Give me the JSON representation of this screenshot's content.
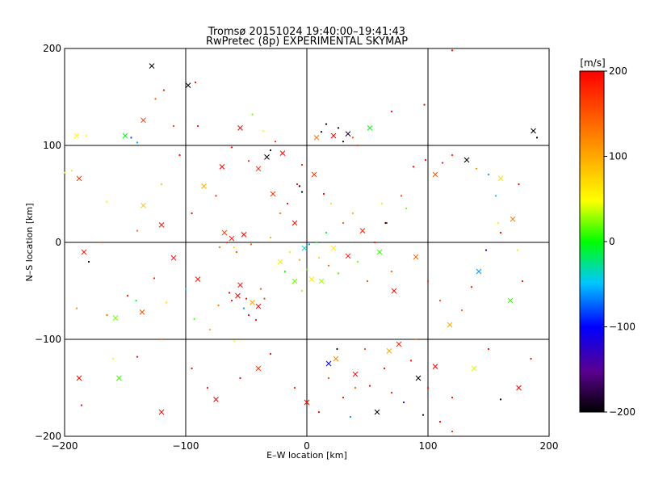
{
  "chart_data": {
    "type": "scatter",
    "title": "Tromsø 20151024 19:40:00–19:41:43",
    "subtitle": "RwPretec (8p) EXPERIMENTAL SKYMAP",
    "xlabel": "E–W location [km]",
    "ylabel": "N–S location [km]",
    "xlim": [
      -200,
      200
    ],
    "ylim": [
      -200,
      200
    ],
    "xticks": [
      -200,
      -100,
      0,
      100,
      200
    ],
    "yticks": [
      -200,
      -100,
      0,
      100,
      200
    ],
    "grid": true,
    "markers": {
      "dot": "small dot",
      "cross": "x"
    },
    "colorbar": {
      "label": "[m/s]",
      "min": -200,
      "max": 200,
      "ticks": [
        200,
        100,
        0,
        -100,
        -200
      ],
      "colormap": [
        "#000000",
        "#5a0090",
        "#0000ff",
        "#00c8ff",
        "#00ff00",
        "#ffff00",
        "#ff8000",
        "#ff0000"
      ],
      "placement": "right"
    },
    "series": [
      {
        "points": [
          [
            -150,
            110,
            0
          ],
          [
            -145,
            108,
            -80
          ],
          [
            -140,
            103,
            -60
          ],
          [
            -128,
            182,
            -200
          ],
          [
            -125,
            148,
            150
          ],
          [
            -118,
            157,
            190
          ],
          [
            -98,
            162,
            -200
          ],
          [
            -110,
            120,
            170
          ],
          [
            -165,
            42,
            60
          ],
          [
            -188,
            66,
            180
          ],
          [
            -190,
            -68,
            120
          ],
          [
            -165,
            -75,
            140
          ],
          [
            -158,
            -78,
            20
          ],
          [
            -148,
            -55,
            190
          ],
          [
            -141,
            -60,
            0
          ],
          [
            -136,
            -72,
            150
          ],
          [
            -126,
            -37,
            180
          ],
          [
            -116,
            -62,
            70
          ],
          [
            -110,
            -16,
            200
          ],
          [
            -100,
            -48,
            -50
          ],
          [
            -93,
            -79,
            10
          ],
          [
            -90,
            -38,
            190
          ],
          [
            -80,
            -90,
            100
          ],
          [
            -73,
            -65,
            130
          ],
          [
            -68,
            10,
            160
          ],
          [
            -64,
            -52,
            200
          ],
          [
            -60,
            -5,
            60
          ],
          [
            -57,
            -55,
            200
          ],
          [
            -52,
            -68,
            -60
          ],
          [
            -48,
            -75,
            200
          ],
          [
            -45,
            -62,
            100
          ],
          [
            -42,
            -80,
            190
          ],
          [
            -38,
            -48,
            150
          ],
          [
            -55,
            -44,
            200
          ],
          [
            -62,
            -60,
            200
          ],
          [
            -50,
            -58,
            200
          ],
          [
            -40,
            -66,
            200
          ],
          [
            -35,
            -58,
            170
          ],
          [
            -66,
            0,
            180
          ],
          [
            -62,
            4,
            190
          ],
          [
            -58,
            -10,
            160
          ],
          [
            -72,
            -5,
            130
          ],
          [
            -52,
            8,
            200
          ],
          [
            -46,
            -2,
            150
          ],
          [
            -30,
            5,
            100
          ],
          [
            -22,
            -20,
            60
          ],
          [
            -18,
            -30,
            0
          ],
          [
            -14,
            -10,
            40
          ],
          [
            -10,
            -40,
            20
          ],
          [
            -6,
            -18,
            100
          ],
          [
            -4,
            -50,
            30
          ],
          [
            -2,
            -6,
            -40
          ],
          [
            0,
            -28,
            10
          ],
          [
            2,
            -2,
            -60
          ],
          [
            4,
            -38,
            60
          ],
          [
            8,
            0,
            0
          ],
          [
            10,
            -16,
            80
          ],
          [
            12,
            -40,
            30
          ],
          [
            16,
            10,
            -10
          ],
          [
            18,
            -24,
            140
          ],
          [
            22,
            -6,
            60
          ],
          [
            26,
            -32,
            10
          ],
          [
            30,
            20,
            150
          ],
          [
            34,
            -14,
            190
          ],
          [
            38,
            30,
            90
          ],
          [
            42,
            -20,
            20
          ],
          [
            46,
            12,
            180
          ],
          [
            50,
            -40,
            160
          ],
          [
            56,
            0,
            200
          ],
          [
            60,
            -10,
            10
          ],
          [
            66,
            20,
            180
          ],
          [
            70,
            -30,
            140
          ],
          [
            -10,
            20,
            190
          ],
          [
            -16,
            40,
            200
          ],
          [
            -22,
            30,
            130
          ],
          [
            -28,
            50,
            170
          ],
          [
            -8,
            60,
            200
          ],
          [
            -4,
            80,
            190
          ],
          [
            6,
            70,
            170
          ],
          [
            14,
            50,
            200
          ],
          [
            20,
            40,
            60
          ],
          [
            -33,
            88,
            -200
          ],
          [
            -30,
            95,
            -200
          ],
          [
            -26,
            104,
            180
          ],
          [
            -20,
            92,
            200
          ],
          [
            -6,
            58,
            -200
          ],
          [
            -4,
            52,
            -200
          ],
          [
            8,
            108,
            130
          ],
          [
            12,
            114,
            -200
          ],
          [
            16,
            122,
            -200
          ],
          [
            22,
            110,
            200
          ],
          [
            26,
            118,
            -200
          ],
          [
            30,
            104,
            -200
          ],
          [
            34,
            112,
            -180
          ],
          [
            38,
            108,
            150
          ],
          [
            42,
            100,
            170
          ],
          [
            52,
            118,
            0
          ],
          [
            70,
            135,
            200
          ],
          [
            97,
            142,
            200
          ],
          [
            -85,
            58,
            100
          ],
          [
            -75,
            48,
            180
          ],
          [
            -95,
            30,
            200
          ],
          [
            -120,
            18,
            190
          ],
          [
            -140,
            12,
            140
          ],
          [
            -170,
            0,
            150
          ],
          [
            -184,
            -10,
            180
          ],
          [
            -194,
            74,
            40
          ],
          [
            -182,
            110,
            50
          ],
          [
            -135,
            38,
            80
          ],
          [
            -120,
            60,
            30
          ],
          [
            -105,
            90,
            200
          ],
          [
            -70,
            78,
            200
          ],
          [
            -62,
            98,
            200
          ],
          [
            -48,
            84,
            190
          ],
          [
            -40,
            76,
            180
          ],
          [
            -36,
            115,
            50
          ],
          [
            -45,
            132,
            20
          ],
          [
            -55,
            118,
            200
          ],
          [
            -90,
            120,
            200
          ],
          [
            -92,
            165,
            200
          ],
          [
            -135,
            126,
            170
          ],
          [
            88,
            78,
            200
          ],
          [
            98,
            85,
            200
          ],
          [
            106,
            70,
            150
          ],
          [
            112,
            82,
            190
          ],
          [
            120,
            90,
            190
          ],
          [
            132,
            85,
            -200
          ],
          [
            140,
            76,
            120
          ],
          [
            150,
            70,
            -60
          ],
          [
            160,
            66,
            70
          ],
          [
            156,
            48,
            -50
          ],
          [
            158,
            20,
            40
          ],
          [
            170,
            24,
            130
          ],
          [
            174,
            -8,
            60
          ],
          [
            178,
            -40,
            200
          ],
          [
            168,
            -60,
            10
          ],
          [
            160,
            10,
            200
          ],
          [
            148,
            -8,
            -120
          ],
          [
            142,
            -30,
            -60
          ],
          [
            136,
            -46,
            200
          ],
          [
            128,
            -70,
            140
          ],
          [
            118,
            -85,
            100
          ],
          [
            110,
            -60,
            160
          ],
          [
            100,
            -40,
            190
          ],
          [
            90,
            -15,
            140
          ],
          [
            82,
            35,
            20
          ],
          [
            78,
            48,
            160
          ],
          [
            72,
            -50,
            190
          ],
          [
            65,
            20,
            -200
          ],
          [
            62,
            40,
            60
          ],
          [
            -190,
            110,
            50
          ],
          [
            -200,
            72,
            60
          ],
          [
            -180,
            -20,
            -200
          ],
          [
            -188,
            -140,
            200
          ],
          [
            -186,
            -168,
            200
          ],
          [
            -160,
            -120,
            50
          ],
          [
            -155,
            -140,
            10
          ],
          [
            -140,
            -118,
            200
          ],
          [
            -120,
            -100,
            140
          ],
          [
            -120,
            -175,
            190
          ],
          [
            -95,
            -130,
            200
          ],
          [
            -82,
            -150,
            190
          ],
          [
            -75,
            -162,
            200
          ],
          [
            -60,
            -102,
            50
          ],
          [
            -55,
            -140,
            200
          ],
          [
            -40,
            -130,
            170
          ],
          [
            -30,
            -115,
            200
          ],
          [
            -10,
            -150,
            190
          ],
          [
            0,
            -165,
            200
          ],
          [
            10,
            -175,
            200
          ],
          [
            18,
            -140,
            160
          ],
          [
            24,
            -120,
            120
          ],
          [
            30,
            -160,
            200
          ],
          [
            36,
            -180,
            -60
          ],
          [
            40,
            -136,
            200
          ],
          [
            48,
            -110,
            160
          ],
          [
            52,
            -148,
            200
          ],
          [
            58,
            -175,
            -200
          ],
          [
            64,
            -130,
            200
          ],
          [
            70,
            -155,
            190
          ],
          [
            76,
            -105,
            180
          ],
          [
            80,
            -165,
            -120
          ],
          [
            86,
            -122,
            200
          ],
          [
            92,
            -140,
            -200
          ],
          [
            96,
            -178,
            -200
          ],
          [
            100,
            -150,
            200
          ],
          [
            106,
            -128,
            200
          ],
          [
            110,
            -185,
            200
          ],
          [
            120,
            -160,
            200
          ],
          [
            18,
            -125,
            -100
          ],
          [
            25,
            -110,
            -200
          ],
          [
            40,
            -150,
            140
          ],
          [
            68,
            -112,
            100
          ],
          [
            90,
            -100,
            140
          ],
          [
            120,
            -195,
            180
          ],
          [
            138,
            -130,
            40
          ],
          [
            150,
            -110,
            200
          ],
          [
            160,
            -162,
            -200
          ],
          [
            175,
            -150,
            200
          ],
          [
            185,
            -120,
            200
          ],
          [
            120,
            198,
            200
          ],
          [
            187,
            115,
            -200
          ],
          [
            190,
            108,
            -200
          ],
          [
            175,
            60,
            200
          ]
        ]
      }
    ]
  }
}
